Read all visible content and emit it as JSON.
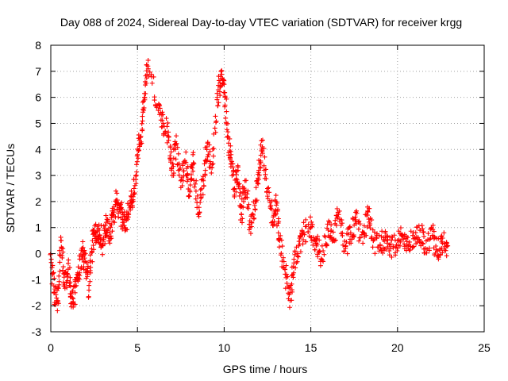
{
  "chart_data": {
    "type": "scatter",
    "title": "Day 088 of 2024, Sidereal Day-to-day VTEC variation (SDTVAR) for receiver krgg",
    "xlabel": "GPS time / hours",
    "ylabel": "SDTVAR / TECUs",
    "xlim": [
      0,
      25
    ],
    "ylim": [
      -3,
      8
    ],
    "xticks": [
      0,
      5,
      10,
      15,
      20,
      25
    ],
    "yticks": [
      -3,
      -2,
      -1,
      0,
      1,
      2,
      3,
      4,
      5,
      6,
      7,
      8
    ],
    "grid": true,
    "marker": "plus",
    "color": "#ff0000",
    "series": [
      {
        "name": "SDTVAR",
        "x": [
          0.0,
          0.2,
          0.4,
          0.6,
          0.8,
          1.0,
          1.2,
          1.4,
          1.6,
          1.8,
          2.0,
          2.2,
          2.4,
          2.6,
          2.8,
          3.0,
          3.2,
          3.4,
          3.6,
          3.8,
          4.0,
          4.2,
          4.4,
          4.6,
          4.8,
          5.0,
          5.2,
          5.4,
          5.6,
          6.2,
          6.5,
          6.8,
          7.0,
          7.2,
          7.5,
          7.8,
          8.0,
          8.2,
          8.5,
          8.8,
          9.0,
          9.3,
          9.6,
          9.8,
          10.0,
          10.2,
          10.4,
          10.6,
          10.8,
          11.0,
          11.2,
          11.5,
          11.8,
          12.0,
          12.2,
          12.5,
          12.8,
          13.0,
          13.2,
          13.5,
          13.8,
          14.0,
          14.3,
          14.6,
          15.0,
          15.3,
          15.6,
          16.0,
          16.3,
          16.6,
          17.0,
          17.3,
          17.6,
          18.0,
          18.3,
          18.6,
          19.0,
          19.3,
          19.6,
          20.0,
          20.3,
          20.6,
          21.0,
          21.3,
          21.6,
          22.0,
          22.3,
          22.6,
          22.9
        ],
        "y": [
          0.0,
          -1.5,
          -1.8,
          0.5,
          -1.2,
          -0.6,
          -1.9,
          -1.5,
          -0.8,
          0.2,
          -0.3,
          -1.4,
          0.5,
          0.8,
          0.9,
          0.3,
          1.2,
          0.8,
          1.5,
          2.0,
          1.6,
          1.2,
          1.4,
          1.8,
          2.5,
          3.8,
          4.5,
          6.0,
          7.2,
          5.5,
          5.0,
          4.5,
          3.0,
          4.2,
          2.8,
          3.5,
          2.2,
          3.8,
          1.5,
          2.8,
          4.0,
          3.3,
          6.0,
          6.8,
          6.5,
          4.5,
          3.8,
          2.5,
          3.2,
          1.5,
          2.8,
          1.0,
          2.0,
          3.2,
          4.1,
          2.5,
          1.2,
          2.0,
          0.5,
          -0.6,
          -1.8,
          -0.5,
          0.3,
          0.8,
          1.0,
          0.4,
          -0.2,
          0.9,
          0.5,
          1.5,
          0.2,
          0.8,
          1.3,
          0.4,
          1.6,
          0.5,
          0.3,
          0.6,
          0.2,
          0.5,
          0.7,
          0.3,
          0.6,
          0.9,
          0.2,
          0.7,
          0.1,
          0.4,
          0.3
        ]
      }
    ]
  }
}
